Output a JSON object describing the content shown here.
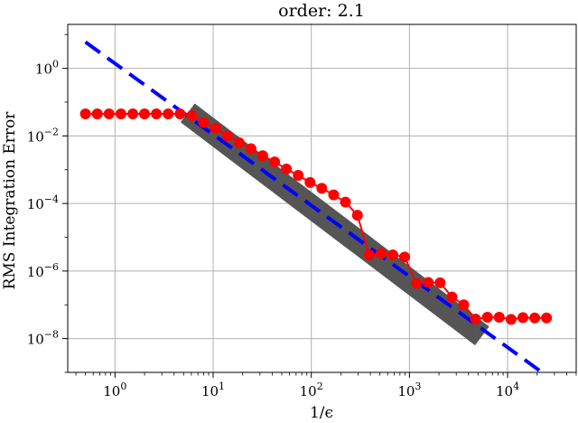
{
  "chart_data": {
    "type": "scatter",
    "title": "order: 2.1",
    "xlabel": "1/ϵ",
    "ylabel": "RMS Integration Error",
    "xscale": "log",
    "yscale": "log",
    "xlim": [
      0.33,
      50000
    ],
    "ylim": [
      1e-09,
      20.0
    ],
    "grid": true,
    "x_ticks": [
      {
        "value": 1,
        "mant": "10",
        "exp": "0"
      },
      {
        "value": 10,
        "mant": "10",
        "exp": "1"
      },
      {
        "value": 100,
        "mant": "10",
        "exp": "2"
      },
      {
        "value": 1000,
        "mant": "10",
        "exp": "3"
      },
      {
        "value": 10000,
        "mant": "10",
        "exp": "4"
      }
    ],
    "y_ticks": [
      {
        "value": 1e-08,
        "mant": "10",
        "exp": "−8"
      },
      {
        "value": 1e-06,
        "mant": "10",
        "exp": "−6"
      },
      {
        "value": 0.0001,
        "mant": "10",
        "exp": "−4"
      },
      {
        "value": 0.01,
        "mant": "10",
        "exp": "−2"
      },
      {
        "value": 1,
        "mant": "10",
        "exp": "0"
      }
    ],
    "series": [
      {
        "role": "fit-band",
        "color": "#555555",
        "x": [
          5.5,
          5500
        ],
        "y": [
          0.048,
          1.2e-08
        ]
      },
      {
        "role": "reference-line",
        "color": "#0000ff",
        "linestyle": "dashed",
        "x": [
          0.5,
          25000
        ],
        "y": [
          6.0,
          8e-10
        ]
      },
      {
        "role": "measured",
        "color": "#ff0000",
        "marker": "circle",
        "x": [
          0.5,
          0.66,
          0.87,
          1.15,
          1.52,
          2.0,
          2.64,
          3.48,
          4.6,
          6.07,
          8.0,
          10.6,
          14.0,
          18.4,
          24.3,
          32.0,
          42.3,
          55.8,
          73.6,
          97.1,
          128,
          169,
          223,
          295,
          389,
          513,
          677,
          894,
          1180,
          1556,
          2054,
          2710,
          3577,
          4720,
          6230,
          8220,
          10850,
          14320,
          18900,
          24940
        ],
        "y": [
          0.045,
          0.045,
          0.045,
          0.045,
          0.045,
          0.045,
          0.045,
          0.045,
          0.045,
          0.04,
          0.025,
          0.017,
          0.01,
          0.0063,
          0.0042,
          0.0026,
          0.0017,
          0.00105,
          0.00068,
          0.00042,
          0.00028,
          0.00018,
          0.00011,
          4.5e-05,
          3e-06,
          3.3e-06,
          3e-06,
          2.6e-06,
          4.3e-07,
          4.6e-07,
          4.5e-07,
          1.7e-07,
          1e-07,
          3.8e-08,
          4.3e-08,
          4.3e-08,
          3.7e-08,
          4.2e-08,
          4.1e-08,
          4.1e-08
        ]
      }
    ]
  }
}
